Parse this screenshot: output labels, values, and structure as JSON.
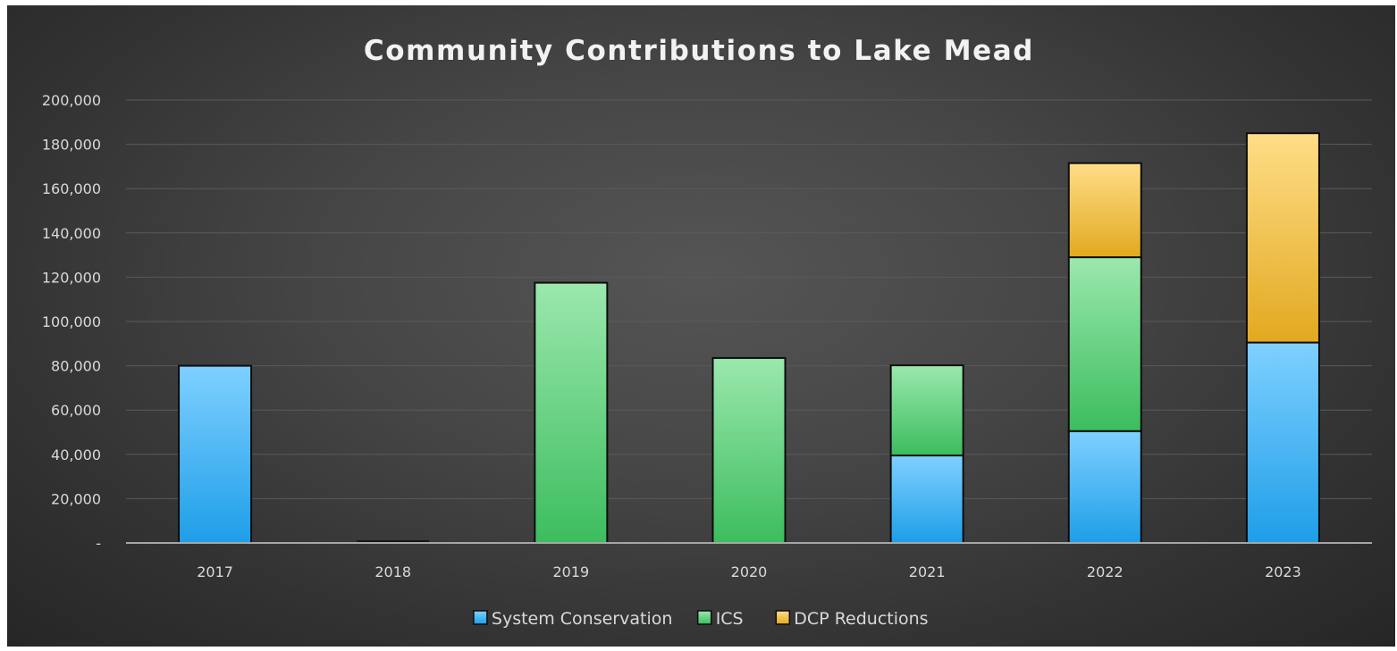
{
  "chart_data": {
    "type": "bar",
    "stacked": true,
    "title": "Community Contributions to Lake Mead",
    "xlabel": "",
    "ylabel": "",
    "categories": [
      "2017",
      "2018",
      "2019",
      "2020",
      "2021",
      "2022",
      "2023"
    ],
    "series": [
      {
        "name": "System Conservation",
        "values": [
          80000,
          0,
          0,
          0,
          39500,
          50500,
          90500
        ],
        "color": "#39aef0"
      },
      {
        "name": "ICS",
        "values": [
          0,
          0,
          117500,
          83500,
          40700,
          78500,
          0
        ],
        "color": "#5fd07a"
      },
      {
        "name": "DCP Reductions",
        "values": [
          0,
          0,
          0,
          0,
          0,
          42500,
          94500
        ],
        "color": "#f4c454"
      }
    ],
    "ylim": [
      0,
      200000
    ],
    "yticks": [
      0,
      20000,
      40000,
      60000,
      80000,
      100000,
      120000,
      140000,
      160000,
      180000,
      200000
    ],
    "ytick_labels": [
      "-",
      "20,000",
      "40,000",
      "60,000",
      "80,000",
      "100,000",
      "120,000",
      "140,000",
      "160,000",
      "180,000",
      "200,000"
    ],
    "grid": true,
    "legend_position": "bottom",
    "background": "#3d3d3d"
  }
}
